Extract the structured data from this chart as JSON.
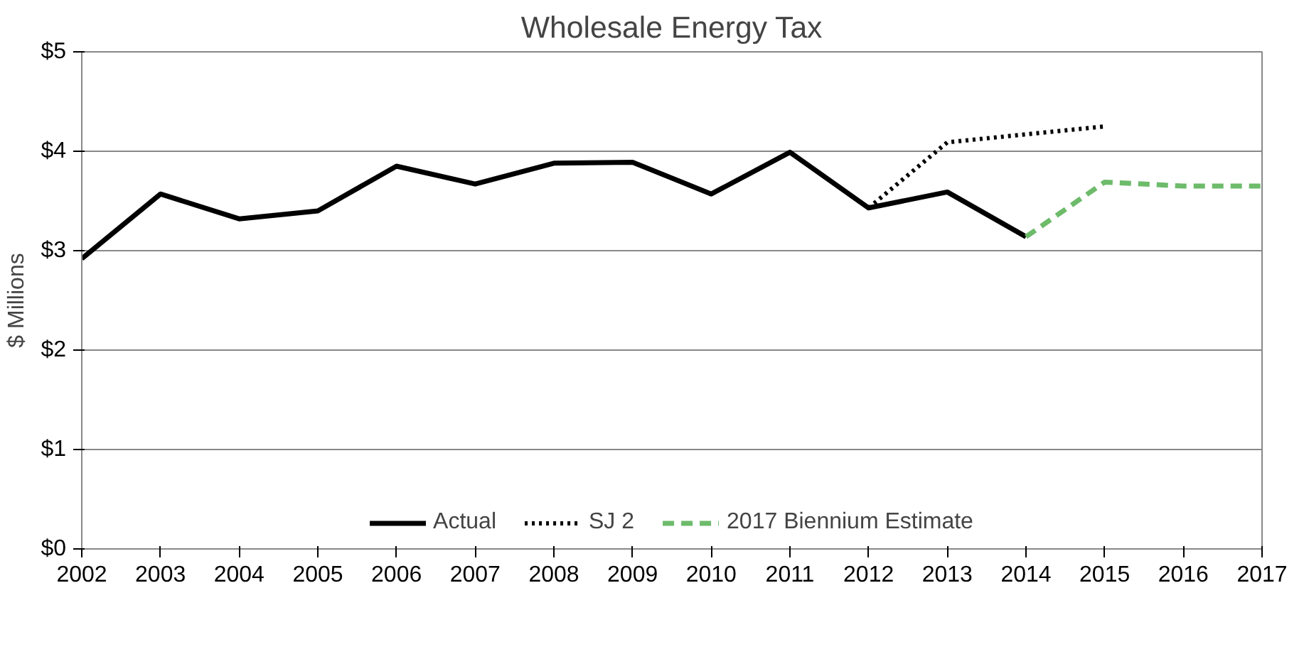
{
  "chart_data": {
    "type": "line",
    "title": "Wholesale Energy Tax",
    "ylabel": "$ Millions",
    "xlim": [
      2002,
      2017
    ],
    "xticks": [
      2002,
      2003,
      2004,
      2005,
      2006,
      2007,
      2008,
      2009,
      2010,
      2011,
      2012,
      2013,
      2014,
      2015,
      2016,
      2017
    ],
    "ylim": [
      0,
      5
    ],
    "yticks": [
      {
        "value": 0,
        "label": "$0"
      },
      {
        "value": 1,
        "label": "$1"
      },
      {
        "value": 2,
        "label": "$2"
      },
      {
        "value": 3,
        "label": "$3"
      },
      {
        "value": 4,
        "label": "$4"
      },
      {
        "value": 5,
        "label": "$5"
      }
    ],
    "grid": "y",
    "legend": "bottom",
    "marker": "none",
    "series": [
      {
        "name": "Actual",
        "color": "#000000",
        "line_style": "solid",
        "x": [
          2002,
          2003,
          2004,
          2005,
          2006,
          2007,
          2008,
          2009,
          2010,
          2011,
          2012,
          2013,
          2014
        ],
        "values": [
          2.92,
          3.57,
          3.32,
          3.4,
          3.85,
          3.67,
          3.88,
          3.89,
          3.57,
          3.99,
          3.43,
          3.59,
          3.14
        ]
      },
      {
        "name": "SJ 2",
        "color": "#000000",
        "line_style": "dotted",
        "x": [
          2012,
          2013,
          2014,
          2015
        ],
        "values": [
          3.43,
          4.09,
          4.17,
          4.25
        ]
      },
      {
        "name": "2017 Biennium Estimate",
        "color": "#6dbb6b",
        "line_style": "dashed",
        "x": [
          2014,
          2015,
          2016,
          2017
        ],
        "values": [
          3.14,
          3.69,
          3.65,
          3.65
        ]
      }
    ]
  }
}
